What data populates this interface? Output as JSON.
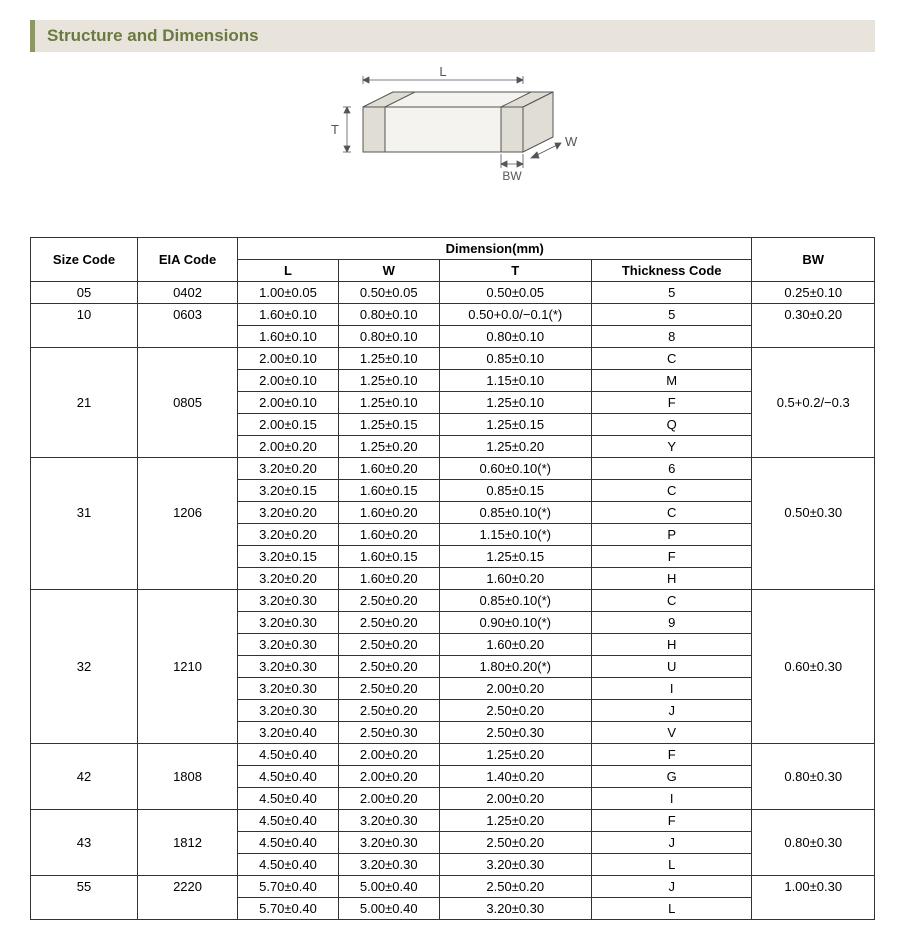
{
  "section_title": "Structure and Dimensions",
  "diagram": {
    "labels": {
      "L": "L",
      "W": "W",
      "T": "T",
      "BW": "BW"
    },
    "stroke_color": "#555555",
    "fill_color": "#f5f3ef",
    "text_color": "#555555"
  },
  "table": {
    "header": {
      "size_code": "Size Code",
      "eia_code": "EIA Code",
      "dimension_group": "Dimension(mm)",
      "L": "L",
      "W": "W",
      "T": "T",
      "thickness_code": "Thickness Code",
      "BW": "BW"
    },
    "groups": [
      {
        "size_code": "05",
        "eia_code": "0402",
        "bw": "0.25±0.10",
        "rows": [
          {
            "L": "1.00±0.05",
            "W": "0.50±0.05",
            "T": "0.50±0.05",
            "TC": "5"
          }
        ]
      },
      {
        "size_code": "10",
        "eia_code": "0603",
        "bw": "0.30±0.20",
        "rows": [
          {
            "L": "1.60±0.10",
            "W": "0.80±0.10",
            "T": "0.50+0.0/−0.1(*)",
            "TC": "5"
          },
          {
            "L": "1.60±0.10",
            "W": "0.80±0.10",
            "T": "0.80±0.10",
            "TC": "8"
          }
        ]
      },
      {
        "size_code": "21",
        "eia_code": "0805",
        "bw": "0.5+0.2/−0.3",
        "rows": [
          {
            "L": "2.00±0.10",
            "W": "1.25±0.10",
            "T": "0.85±0.10",
            "TC": "C"
          },
          {
            "L": "2.00±0.10",
            "W": "1.25±0.10",
            "T": "1.15±0.10",
            "TC": "M"
          },
          {
            "L": "2.00±0.10",
            "W": "1.25±0.10",
            "T": "1.25±0.10",
            "TC": "F"
          },
          {
            "L": "2.00±0.15",
            "W": "1.25±0.15",
            "T": "1.25±0.15",
            "TC": "Q"
          },
          {
            "L": "2.00±0.20",
            "W": "1.25±0.20",
            "T": "1.25±0.20",
            "TC": "Y"
          }
        ]
      },
      {
        "size_code": "31",
        "eia_code": "1206",
        "bw": "0.50±0.30",
        "rows": [
          {
            "L": "3.20±0.20",
            "W": "1.60±0.20",
            "T": "0.60±0.10(*)",
            "TC": "6"
          },
          {
            "L": "3.20±0.15",
            "W": "1.60±0.15",
            "T": "0.85±0.15",
            "TC": "C"
          },
          {
            "L": "3.20±0.20",
            "W": "1.60±0.20",
            "T": "0.85±0.10(*)",
            "TC": "C"
          },
          {
            "L": "3.20±0.20",
            "W": "1.60±0.20",
            "T": "1.15±0.10(*)",
            "TC": "P"
          },
          {
            "L": "3.20±0.15",
            "W": "1.60±0.15",
            "T": "1.25±0.15",
            "TC": "F"
          },
          {
            "L": "3.20±0.20",
            "W": "1.60±0.20",
            "T": "1.60±0.20",
            "TC": "H"
          }
        ]
      },
      {
        "size_code": "32",
        "eia_code": "1210",
        "bw": "0.60±0.30",
        "rows": [
          {
            "L": "3.20±0.30",
            "W": "2.50±0.20",
            "T": "0.85±0.10(*)",
            "TC": "C"
          },
          {
            "L": "3.20±0.30",
            "W": "2.50±0.20",
            "T": "0.90±0.10(*)",
            "TC": "9"
          },
          {
            "L": "3.20±0.30",
            "W": "2.50±0.20",
            "T": "1.60±0.20",
            "TC": "H"
          },
          {
            "L": "3.20±0.30",
            "W": "2.50±0.20",
            "T": "1.80±0.20(*)",
            "TC": "U"
          },
          {
            "L": "3.20±0.30",
            "W": "2.50±0.20",
            "T": "2.00±0.20",
            "TC": "I"
          },
          {
            "L": "3.20±0.30",
            "W": "2.50±0.20",
            "T": "2.50±0.20",
            "TC": "J"
          },
          {
            "L": "3.20±0.40",
            "W": "2.50±0.30",
            "T": "2.50±0.30",
            "TC": "V"
          }
        ]
      },
      {
        "size_code": "42",
        "eia_code": "1808",
        "bw": "0.80±0.30",
        "rows": [
          {
            "L": "4.50±0.40",
            "W": "2.00±0.20",
            "T": "1.25±0.20",
            "TC": "F"
          },
          {
            "L": "4.50±0.40",
            "W": "2.00±0.20",
            "T": "1.40±0.20",
            "TC": "G"
          },
          {
            "L": "4.50±0.40",
            "W": "2.00±0.20",
            "T": "2.00±0.20",
            "TC": "I"
          }
        ]
      },
      {
        "size_code": "43",
        "eia_code": "1812",
        "bw": "0.80±0.30",
        "rows": [
          {
            "L": "4.50±0.40",
            "W": "3.20±0.30",
            "T": "1.25±0.20",
            "TC": "F"
          },
          {
            "L": "4.50±0.40",
            "W": "3.20±0.30",
            "T": "2.50±0.20",
            "TC": "J"
          },
          {
            "L": "4.50±0.40",
            "W": "3.20±0.30",
            "T": "3.20±0.30",
            "TC": "L"
          }
        ]
      },
      {
        "size_code": "55",
        "eia_code": "2220",
        "bw": "1.00±0.30",
        "rows": [
          {
            "L": "5.70±0.40",
            "W": "5.00±0.40",
            "T": "2.50±0.20",
            "TC": "J"
          },
          {
            "L": "5.70±0.40",
            "W": "5.00±0.40",
            "T": "3.20±0.30",
            "TC": "L"
          }
        ]
      }
    ]
  }
}
